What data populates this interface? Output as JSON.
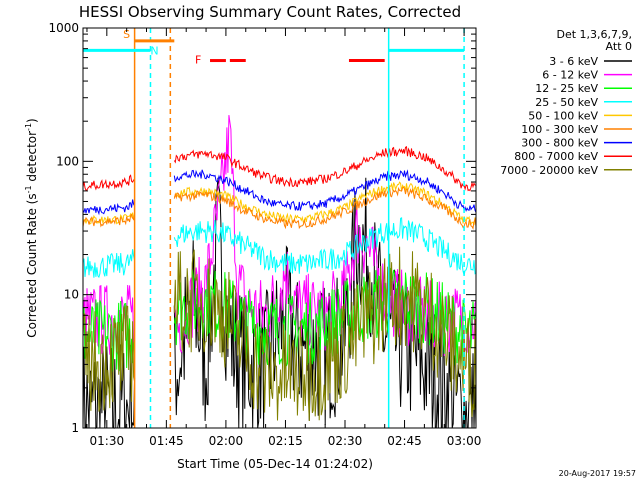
{
  "chart_data": {
    "type": "line",
    "title": "HESSI Observing Summary Count Rates, Corrected",
    "xlabel": "Start Time (05-Dec-14 01:24:02)",
    "ylabel_main": "Corrected Count Rate (s",
    "ylabel_sup1": "-1",
    "ylabel_mid": " detector",
    "ylabel_sup2": "-1",
    "ylabel_end": ")",
    "yscale": "log",
    "ylim": [
      1,
      1000
    ],
    "xlim": [
      "01:24",
      "03:03"
    ],
    "x_ticks": [
      "01:30",
      "01:45",
      "02:00",
      "02:15",
      "02:30",
      "02:45",
      "03:00"
    ],
    "y_ticks": [
      "1",
      "10",
      "100",
      "1000"
    ],
    "legend_title": [
      "Det 1,3,6,7,9,",
      "Att 0"
    ],
    "legend_position": "right",
    "footer": "20-Aug-2017 19:57",
    "gaps": [
      [
        "01:37",
        "01:47"
      ]
    ],
    "series": [
      {
        "name": "3 - 6 keV",
        "color": "#000000",
        "points": [
          [
            "01:24",
            1.4
          ],
          [
            "01:35",
            1.4
          ],
          [
            "01:48",
            3
          ],
          [
            "01:52",
            9
          ],
          [
            "01:55",
            3
          ],
          [
            "01:58",
            28
          ],
          [
            "02:00",
            8
          ],
          [
            "02:02",
            4
          ],
          [
            "02:05",
            3
          ],
          [
            "02:10",
            3
          ],
          [
            "02:13",
            5
          ],
          [
            "02:15",
            7
          ],
          [
            "02:18",
            4
          ],
          [
            "02:25",
            3.5
          ],
          [
            "02:30",
            5
          ],
          [
            "02:33",
            27
          ],
          [
            "02:36",
            20
          ],
          [
            "02:40",
            5
          ],
          [
            "02:45",
            4
          ],
          [
            "02:50",
            3
          ],
          [
            "02:55",
            2
          ],
          [
            "03:00",
            1.3
          ]
        ]
      },
      {
        "name": "6 - 12 keV",
        "color": "#ff00ff",
        "points": [
          [
            "01:24",
            6.5
          ],
          [
            "01:35",
            6.5
          ],
          [
            "01:48",
            6
          ],
          [
            "01:52",
            9
          ],
          [
            "01:55",
            12
          ],
          [
            "01:58",
            40
          ],
          [
            "02:00",
            100
          ],
          [
            "02:01",
            160
          ],
          [
            "02:03",
            12
          ],
          [
            "02:06",
            8
          ],
          [
            "02:10",
            7
          ],
          [
            "02:13",
            10
          ],
          [
            "02:15",
            15
          ],
          [
            "02:18",
            8
          ],
          [
            "02:25",
            7
          ],
          [
            "02:30",
            10
          ],
          [
            "02:33",
            30
          ],
          [
            "02:36",
            22
          ],
          [
            "02:40",
            10
          ],
          [
            "02:45",
            8
          ],
          [
            "02:50",
            7
          ],
          [
            "02:55",
            6.5
          ],
          [
            "03:00",
            6.5
          ]
        ]
      },
      {
        "name": "12 - 25 keV",
        "color": "#00ff00",
        "points": [
          [
            "01:24",
            5
          ],
          [
            "01:35",
            5
          ],
          [
            "01:48",
            8
          ],
          [
            "01:55",
            9
          ],
          [
            "02:00",
            8
          ],
          [
            "02:05",
            6
          ],
          [
            "02:10",
            5.5
          ],
          [
            "02:15",
            5.5
          ],
          [
            "02:20",
            5.5
          ],
          [
            "02:25",
            6
          ],
          [
            "02:30",
            7
          ],
          [
            "02:35",
            8
          ],
          [
            "02:40",
            9
          ],
          [
            "02:45",
            9
          ],
          [
            "02:50",
            8
          ],
          [
            "02:55",
            6.5
          ],
          [
            "03:00",
            5
          ]
        ]
      },
      {
        "name": "25 - 50 keV",
        "color": "#00ffff",
        "points": [
          [
            "01:24",
            16
          ],
          [
            "01:35",
            17
          ],
          [
            "01:48",
            28
          ],
          [
            "01:52",
            30
          ],
          [
            "01:57",
            30
          ],
          [
            "02:00",
            28
          ],
          [
            "02:05",
            23
          ],
          [
            "02:10",
            19
          ],
          [
            "02:15",
            17
          ],
          [
            "02:20",
            17
          ],
          [
            "02:25",
            18
          ],
          [
            "02:30",
            20
          ],
          [
            "02:35",
            25
          ],
          [
            "02:40",
            30
          ],
          [
            "02:45",
            31
          ],
          [
            "02:50",
            27
          ],
          [
            "02:55",
            21
          ],
          [
            "03:00",
            17
          ]
        ]
      },
      {
        "name": "50 - 100 keV",
        "color": "#ffc800",
        "points": [
          [
            "01:24",
            36
          ],
          [
            "01:35",
            37
          ],
          [
            "01:48",
            58
          ],
          [
            "01:55",
            60
          ],
          [
            "02:00",
            55
          ],
          [
            "02:05",
            46
          ],
          [
            "02:10",
            40
          ],
          [
            "02:15",
            37
          ],
          [
            "02:20",
            37
          ],
          [
            "02:25",
            40
          ],
          [
            "02:30",
            45
          ],
          [
            "02:35",
            55
          ],
          [
            "02:40",
            63
          ],
          [
            "02:45",
            65
          ],
          [
            "02:50",
            58
          ],
          [
            "02:55",
            47
          ],
          [
            "03:00",
            36
          ]
        ]
      },
      {
        "name": "100 - 300 keV",
        "color": "#ff8000",
        "points": [
          [
            "01:24",
            35
          ],
          [
            "01:35",
            36
          ],
          [
            "01:48",
            54
          ],
          [
            "01:55",
            56
          ],
          [
            "02:00",
            51
          ],
          [
            "02:05",
            42
          ],
          [
            "02:10",
            37
          ],
          [
            "02:15",
            34
          ],
          [
            "02:20",
            34
          ],
          [
            "02:25",
            37
          ],
          [
            "02:30",
            42
          ],
          [
            "02:35",
            50
          ],
          [
            "02:40",
            58
          ],
          [
            "02:45",
            60
          ],
          [
            "02:50",
            53
          ],
          [
            "02:55",
            44
          ],
          [
            "03:00",
            34
          ]
        ]
      },
      {
        "name": "300 - 800 keV",
        "color": "#0000ff",
        "points": [
          [
            "01:24",
            43
          ],
          [
            "01:35",
            45
          ],
          [
            "01:48",
            78
          ],
          [
            "01:55",
            80
          ],
          [
            "02:00",
            72
          ],
          [
            "02:05",
            60
          ],
          [
            "02:10",
            50
          ],
          [
            "02:15",
            46
          ],
          [
            "02:20",
            46
          ],
          [
            "02:25",
            48
          ],
          [
            "02:30",
            55
          ],
          [
            "02:35",
            65
          ],
          [
            "02:40",
            76
          ],
          [
            "02:45",
            80
          ],
          [
            "02:50",
            72
          ],
          [
            "02:55",
            58
          ],
          [
            "03:00",
            44
          ]
        ]
      },
      {
        "name": "800 - 7000 keV",
        "color": "#ff0000",
        "points": [
          [
            "01:24",
            65
          ],
          [
            "01:35",
            70
          ],
          [
            "01:48",
            108
          ],
          [
            "01:55",
            115
          ],
          [
            "02:00",
            106
          ],
          [
            "02:05",
            88
          ],
          [
            "02:10",
            76
          ],
          [
            "02:15",
            70
          ],
          [
            "02:20",
            70
          ],
          [
            "02:25",
            74
          ],
          [
            "02:30",
            84
          ],
          [
            "02:35",
            100
          ],
          [
            "02:40",
            116
          ],
          [
            "02:45",
            120
          ],
          [
            "02:50",
            108
          ],
          [
            "02:55",
            86
          ],
          [
            "03:00",
            65
          ]
        ]
      },
      {
        "name": "7000 - 20000 keV",
        "color": "#808000",
        "points": [
          [
            "01:24",
            3
          ],
          [
            "01:35",
            3.5
          ],
          [
            "01:48",
            9
          ],
          [
            "01:55",
            9
          ],
          [
            "02:00",
            7
          ],
          [
            "02:05",
            4
          ],
          [
            "02:10",
            2.5
          ],
          [
            "02:15",
            2.5
          ],
          [
            "02:20",
            2.6
          ],
          [
            "02:25",
            3
          ],
          [
            "02:30",
            4
          ],
          [
            "02:35",
            6
          ],
          [
            "02:40",
            9
          ],
          [
            "02:45",
            10
          ],
          [
            "02:50",
            8
          ],
          [
            "02:55",
            5
          ],
          [
            "03:00",
            3
          ]
        ]
      }
    ],
    "vlines": [
      {
        "time": "01:37",
        "color": "#ff8000",
        "style": "solid"
      },
      {
        "time": "01:41",
        "color": "#00ffff",
        "style": "dashed"
      },
      {
        "time": "01:46",
        "color": "#ff8000",
        "style": "dashed"
      },
      {
        "time": "02:41",
        "color": "#00ffff",
        "style": "solid"
      },
      {
        "time": "03:00",
        "color": "#00ffff",
        "style": "dashed"
      }
    ],
    "flag_bars": [
      {
        "label": "S",
        "color": "#ff8000",
        "segments": [
          [
            "01:37",
            "01:47"
          ]
        ],
        "value": 800,
        "label_time": "01:35",
        "label_value": 900
      },
      {
        "label": "N",
        "color": "#00ffff",
        "segments": [
          [
            "01:24",
            "01:41"
          ],
          [
            "02:41",
            "03:00"
          ]
        ],
        "value": 680,
        "label_time": "01:42",
        "label_value": 680
      },
      {
        "label": "F",
        "color": "#ff0000",
        "segments": [
          [
            "01:56",
            "02:00"
          ],
          [
            "02:01",
            "02:05"
          ],
          [
            "02:31",
            "02:40"
          ]
        ],
        "value": 570,
        "label_time": "01:53",
        "label_value": 580
      }
    ]
  }
}
